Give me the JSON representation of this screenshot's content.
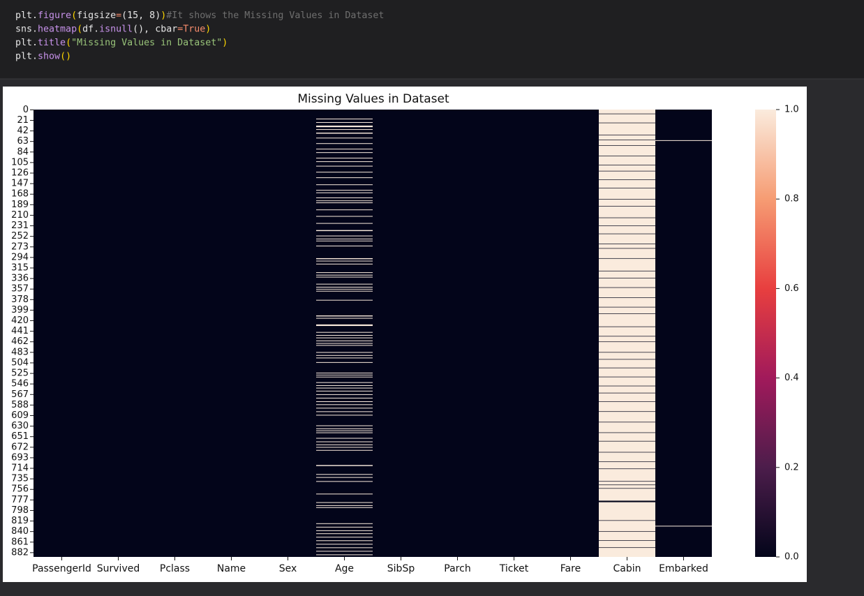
{
  "code": {
    "lines": [
      [
        {
          "text": "plt.",
          "color": "#e6e6e6"
        },
        {
          "text": "figure",
          "color": "#c792ea"
        },
        {
          "text": "(",
          "color": "#ffd700"
        },
        {
          "text": "figsize",
          "color": "#e6e6e6"
        },
        {
          "text": "=",
          "color": "#f78c6c"
        },
        {
          "text": "(15, 8)",
          "color": "#e6e6e6"
        },
        {
          "text": ")",
          "color": "#ffd700"
        },
        {
          "text": "#It shows the Missing Values in Dataset",
          "color": "#6f6f6f"
        }
      ],
      [
        {
          "text": "sns.",
          "color": "#e6e6e6"
        },
        {
          "text": "heatmap",
          "color": "#c792ea"
        },
        {
          "text": "(",
          "color": "#ffd700"
        },
        {
          "text": "df.",
          "color": "#e6e6e6"
        },
        {
          "text": "isnull",
          "color": "#c792ea"
        },
        {
          "text": "(), ",
          "color": "#e6e6e6"
        },
        {
          "text": "cbar",
          "color": "#e6e6e6"
        },
        {
          "text": "=",
          "color": "#f78c6c"
        },
        {
          "text": "True",
          "color": "#f78c6c"
        },
        {
          "text": ")",
          "color": "#ffd700"
        }
      ],
      [
        {
          "text": "plt.",
          "color": "#e6e6e6"
        },
        {
          "text": "title",
          "color": "#c792ea"
        },
        {
          "text": "(",
          "color": "#ffd700"
        },
        {
          "text": "\"Missing Values in Dataset\"",
          "color": "#98c379"
        },
        {
          "text": ")",
          "color": "#ffd700"
        }
      ],
      [
        {
          "text": "plt.",
          "color": "#e6e6e6"
        },
        {
          "text": "show",
          "color": "#c792ea"
        },
        {
          "text": "()",
          "color": "#ffd700"
        }
      ]
    ]
  },
  "chart_data": {
    "type": "heatmap",
    "title": "Missing Values in Dataset",
    "colormap": [
      "#03051a",
      "#4c1d4b",
      "#a11a5b",
      "#e83f3f",
      "#f69c73",
      "#faebdd"
    ],
    "clim": [
      0,
      1
    ],
    "cticks": [
      {
        "value": 0,
        "label": "0.0"
      },
      0.2,
      0.4,
      0.6,
      0.8,
      {
        "value": 1,
        "label": "1.0"
      }
    ],
    "ylim": [
      0,
      891
    ],
    "yticks": [
      0,
      21,
      42,
      63,
      84,
      105,
      126,
      147,
      168,
      189,
      210,
      231,
      252,
      273,
      294,
      315,
      336,
      357,
      378,
      399,
      420,
      441,
      462,
      483,
      504,
      525,
      546,
      567,
      588,
      609,
      630,
      651,
      672,
      693,
      714,
      735,
      756,
      777,
      798,
      819,
      840,
      861,
      882
    ],
    "columns": [
      {
        "name": "PassengerId",
        "missing_runs": []
      },
      {
        "name": "Survived",
        "missing_runs": []
      },
      {
        "name": "Pclass",
        "missing_runs": []
      },
      {
        "name": "Name",
        "missing_runs": []
      },
      {
        "name": "Sex",
        "missing_runs": []
      },
      {
        "name": "Age",
        "missing_runs": [
          [
            18,
            18
          ],
          [
            25,
            25
          ],
          [
            32,
            34
          ],
          [
            39,
            39
          ],
          [
            46,
            47
          ],
          [
            56,
            56
          ],
          [
            67,
            67
          ],
          [
            78,
            78
          ],
          [
            85,
            85
          ],
          [
            96,
            96
          ],
          [
            103,
            103
          ],
          [
            112,
            112
          ],
          [
            124,
            124
          ],
          [
            135,
            135
          ],
          [
            149,
            149
          ],
          [
            160,
            160
          ],
          [
            165,
            165
          ],
          [
            175,
            175
          ],
          [
            181,
            181
          ],
          [
            185,
            185
          ],
          [
            199,
            199
          ],
          [
            212,
            212
          ],
          [
            226,
            226
          ],
          [
            240,
            241
          ],
          [
            251,
            251
          ],
          [
            257,
            257
          ],
          [
            261,
            261
          ],
          [
            271,
            271
          ],
          [
            296,
            297
          ],
          [
            301,
            301
          ],
          [
            307,
            307
          ],
          [
            324,
            324
          ],
          [
            329,
            329
          ],
          [
            333,
            333
          ],
          [
            347,
            347
          ],
          [
            353,
            353
          ],
          [
            357,
            357
          ],
          [
            361,
            361
          ],
          [
            379,
            379
          ],
          [
            410,
            411
          ],
          [
            415,
            415
          ],
          [
            428,
            430
          ],
          [
            443,
            443
          ],
          [
            449,
            449
          ],
          [
            454,
            454
          ],
          [
            460,
            460
          ],
          [
            465,
            465
          ],
          [
            469,
            469
          ],
          [
            483,
            483
          ],
          [
            489,
            489
          ],
          [
            494,
            494
          ],
          [
            503,
            503
          ],
          [
            524,
            524
          ],
          [
            528,
            528
          ],
          [
            532,
            532
          ],
          [
            543,
            543
          ],
          [
            549,
            549
          ],
          [
            554,
            554
          ],
          [
            560,
            560
          ],
          [
            567,
            567
          ],
          [
            574,
            574
          ],
          [
            581,
            581
          ],
          [
            587,
            587
          ],
          [
            594,
            594
          ],
          [
            601,
            601
          ],
          [
            608,
            608
          ],
          [
            629,
            629
          ],
          [
            635,
            635
          ],
          [
            639,
            639
          ],
          [
            643,
            643
          ],
          [
            654,
            654
          ],
          [
            661,
            661
          ],
          [
            667,
            667
          ],
          [
            672,
            672
          ],
          [
            678,
            678
          ],
          [
            708,
            709
          ],
          [
            726,
            726
          ],
          [
            732,
            732
          ],
          [
            740,
            740
          ],
          [
            765,
            765
          ],
          [
            782,
            782
          ],
          [
            788,
            788
          ],
          [
            792,
            792
          ],
          [
            824,
            824
          ],
          [
            831,
            831
          ],
          [
            838,
            838
          ],
          [
            844,
            844
          ],
          [
            851,
            851
          ],
          [
            858,
            858
          ],
          [
            865,
            865
          ],
          [
            872,
            872
          ],
          [
            879,
            879
          ],
          [
            886,
            886
          ]
        ]
      },
      {
        "name": "SibSp",
        "missing_runs": []
      },
      {
        "name": "Parch",
        "missing_runs": []
      },
      {
        "name": "Ticket",
        "missing_runs": []
      },
      {
        "name": "Fare",
        "missing_runs": []
      },
      {
        "name": "Cabin",
        "missing_runs": [
          [
            0,
            7
          ],
          [
            9,
            25
          ],
          [
            27,
            49
          ],
          [
            51,
            59
          ],
          [
            61,
            70
          ],
          [
            72,
            91
          ],
          [
            93,
            109
          ],
          [
            111,
            121
          ],
          [
            123,
            138
          ],
          [
            140,
            155
          ],
          [
            157,
            177
          ],
          [
            179,
            191
          ],
          [
            193,
            214
          ],
          [
            216,
            230
          ],
          [
            232,
            246
          ],
          [
            248,
            266
          ],
          [
            268,
            275
          ],
          [
            277,
            295
          ],
          [
            297,
            320
          ],
          [
            322,
            334
          ],
          [
            336,
            353
          ],
          [
            355,
            373
          ],
          [
            375,
            392
          ],
          [
            394,
            405
          ],
          [
            407,
            431
          ],
          [
            433,
            450
          ],
          [
            452,
            461
          ],
          [
            463,
            482
          ],
          [
            484,
            496
          ],
          [
            498,
            513
          ],
          [
            515,
            531
          ],
          [
            533,
            549
          ],
          [
            551,
            563
          ],
          [
            565,
            580
          ],
          [
            582,
            600
          ],
          [
            602,
            621
          ],
          [
            623,
            642
          ],
          [
            644,
            659
          ],
          [
            661,
            681
          ],
          [
            683,
            700
          ],
          [
            702,
            714
          ],
          [
            716,
            739
          ],
          [
            741,
            746
          ],
          [
            748,
            753
          ],
          [
            755,
            778
          ],
          [
            782,
            817
          ],
          [
            819,
            839
          ],
          [
            841,
            857
          ],
          [
            859,
            871
          ],
          [
            873,
            890
          ]
        ]
      },
      {
        "name": "Embarked",
        "missing_runs": [
          [
            61,
            61
          ],
          [
            829,
            829
          ]
        ]
      }
    ]
  }
}
